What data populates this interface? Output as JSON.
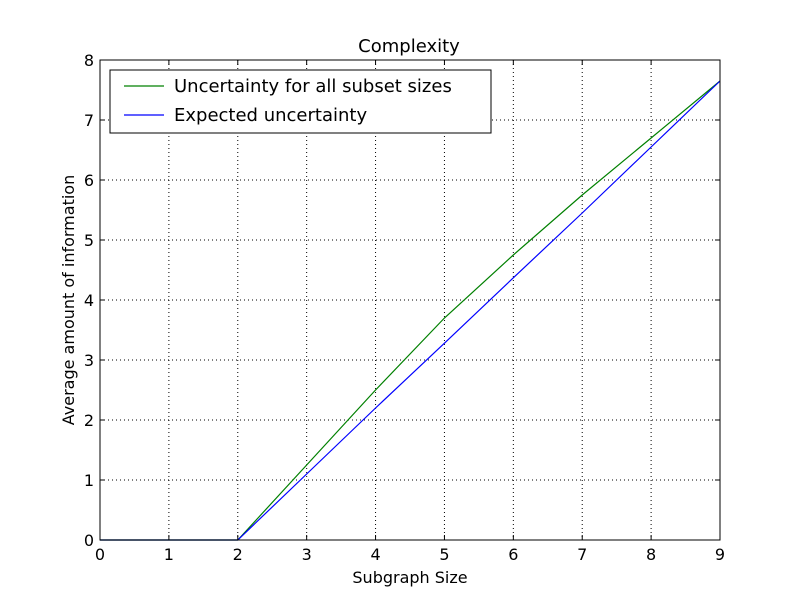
{
  "chart_data": {
    "type": "line",
    "title": "Complexity",
    "xlabel": "Subgraph Size",
    "ylabel": "Average amount of information",
    "xlim": [
      0,
      9
    ],
    "ylim": [
      0,
      8
    ],
    "xticks": [
      0,
      1,
      2,
      3,
      4,
      5,
      6,
      7,
      8,
      9
    ],
    "yticks": [
      0,
      1,
      2,
      3,
      4,
      5,
      6,
      7,
      8
    ],
    "grid": true,
    "grid_style": "dotted",
    "legend_position": "top-left",
    "x": [
      0,
      1,
      2,
      3,
      4,
      5,
      6,
      7,
      8,
      9
    ],
    "series": [
      {
        "name": "Uncertainty for all subset sizes",
        "color": "#008000",
        "values": [
          0,
          0,
          0,
          1.25,
          2.5,
          3.7,
          4.75,
          5.75,
          6.7,
          7.65
        ]
      },
      {
        "name": "Expected uncertainty",
        "color": "#0000ff",
        "values": [
          0,
          0,
          0,
          1.1,
          2.2,
          3.28,
          4.37,
          5.45,
          6.55,
          7.65
        ]
      }
    ]
  }
}
